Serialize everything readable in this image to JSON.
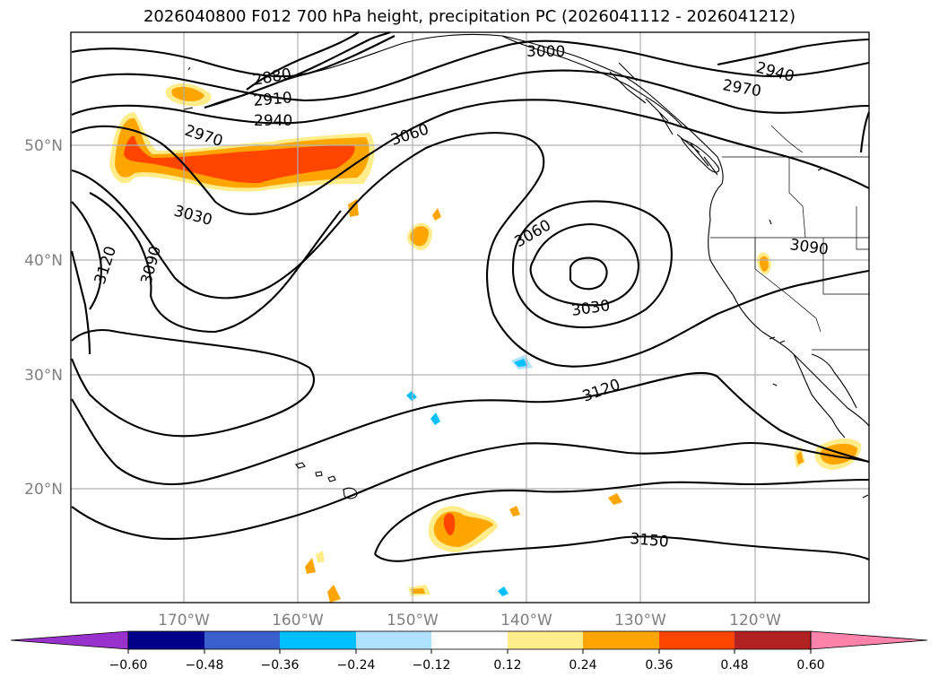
{
  "title": "2026040800 F012 700 hPa height, precipitation PC (2026041112 - 2026041212)",
  "lon_labels": [
    "170°W",
    "160°W",
    "150°W",
    "140°W",
    "130°W",
    "120°W"
  ],
  "lat_labels": [
    "50°N",
    "40°N",
    "30°N",
    "20°N"
  ],
  "contour_labels": [
    "2880",
    "2910",
    "2940",
    "2970",
    "3000",
    "2940",
    "2970",
    "3060",
    "3030",
    "3060",
    "3030",
    "3120",
    "3090",
    "3090",
    "3120",
    "3150"
  ],
  "colorbar": {
    "ticks": [
      "−0.60",
      "−0.48",
      "−0.36",
      "−0.24",
      "−0.12",
      "0.12",
      "0.24",
      "0.36",
      "0.48",
      "0.60"
    ],
    "colors": [
      "#9932CC",
      "#00008B",
      "#3A5FCD",
      "#00BFFF",
      "#B0E2FF",
      "#FFFFFF",
      "#FFEC8B",
      "#FFA500",
      "#FF4500",
      "#B22222",
      "#FF82AB"
    ]
  }
}
